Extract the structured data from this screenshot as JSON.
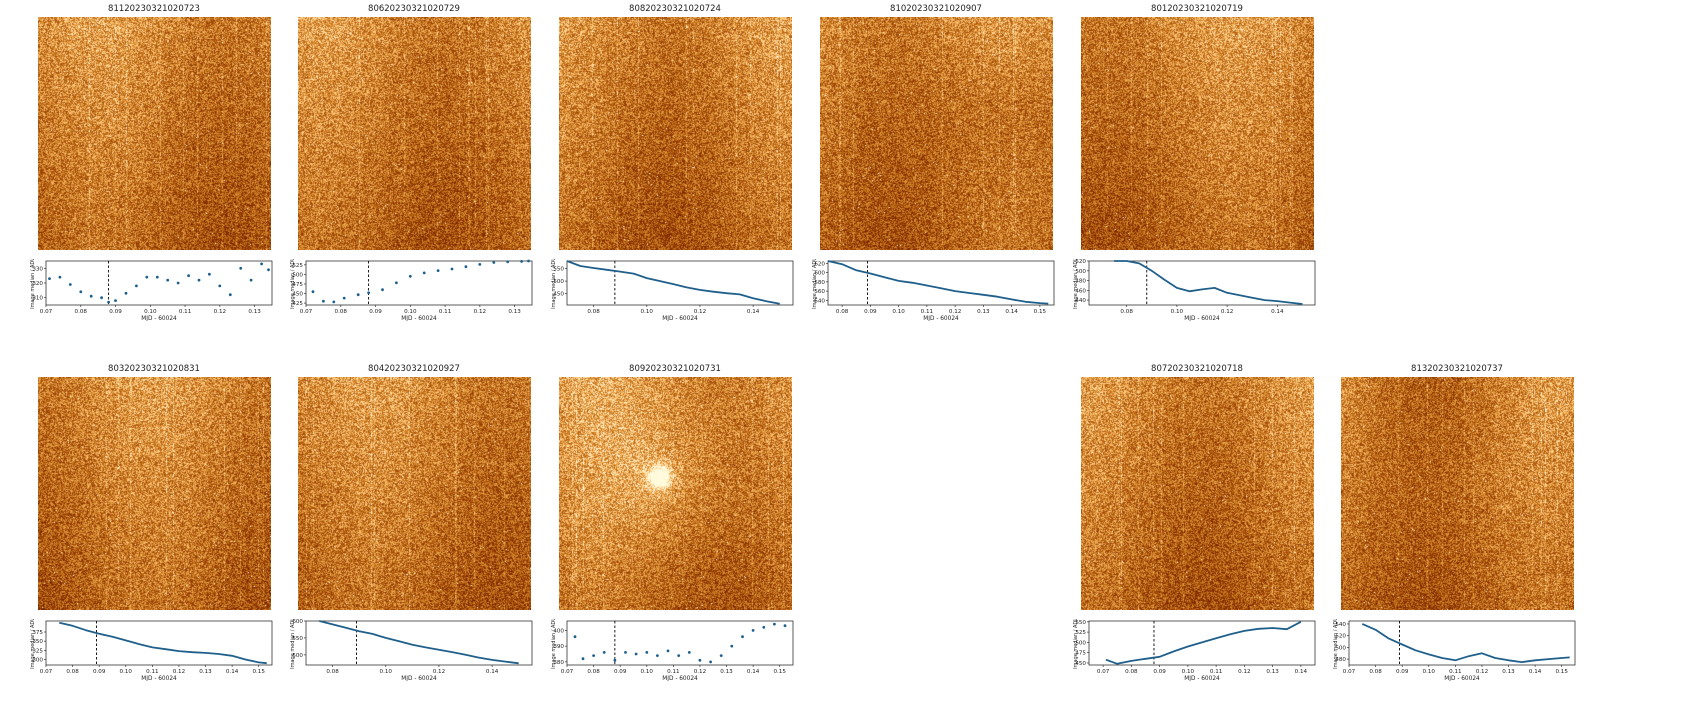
{
  "panels": [
    {
      "title": "81120230321020723"
    },
    {
      "title": "80620230321020729"
    },
    {
      "title": "80820230321020724"
    },
    {
      "title": "81020230321020907"
    },
    {
      "title": "80120230321020719"
    },
    {
      "title": "80320230321020831"
    },
    {
      "title": "80420230321020927"
    },
    {
      "title": "80920230321020731"
    },
    {
      "title": "80720230321020718"
    },
    {
      "title": "81320230321020737"
    }
  ],
  "colors": {
    "series": "#1f5f8b",
    "marker": "#000000",
    "image_bright": "#fff2b8",
    "image_mid": "#e39a3a",
    "image_dark": "#5a1800"
  },
  "chart_data": [
    {
      "type": "scatter",
      "title": "81120230321020723",
      "xlabel": "MJD - 60024",
      "ylabel": "Image median / ADU",
      "xlim": [
        0.07,
        0.135
      ],
      "ylim": [
        305,
        335
      ],
      "xticks": [
        0.07,
        0.08,
        0.09,
        0.1,
        0.11,
        0.12,
        0.13
      ],
      "xtick_labels": [
        "0.07",
        "0.08",
        "0.09",
        "0.10",
        "0.11",
        "0.12",
        "0.13"
      ],
      "yticks": [
        310,
        320,
        330
      ],
      "ytick_labels": [
        "310",
        "320",
        "330"
      ],
      "vline": 0.088,
      "x": [
        0.071,
        0.074,
        0.077,
        0.08,
        0.083,
        0.086,
        0.088,
        0.09,
        0.093,
        0.096,
        0.099,
        0.102,
        0.105,
        0.108,
        0.111,
        0.114,
        0.117,
        0.12,
        0.123,
        0.126,
        0.129,
        0.132,
        0.134
      ],
      "y": [
        323,
        324,
        319,
        314,
        311,
        310,
        307,
        308,
        313,
        318,
        324,
        324,
        322,
        320,
        325,
        322,
        326,
        318,
        312,
        330,
        322,
        333,
        329
      ]
    },
    {
      "type": "scatter",
      "title": "80620230321020729",
      "xlabel": "MJD - 60024",
      "ylabel": "Image median / ADU",
      "xlim": [
        0.07,
        0.135
      ],
      "ylim": [
        420,
        535
      ],
      "xticks": [
        0.07,
        0.08,
        0.09,
        0.1,
        0.11,
        0.12,
        0.13
      ],
      "xtick_labels": [
        "0.07",
        "0.08",
        "0.09",
        "0.10",
        "0.11",
        "0.12",
        "0.13"
      ],
      "yticks": [
        425,
        450,
        475,
        500,
        525
      ],
      "ytick_labels": [
        "425",
        "450",
        "475",
        "500",
        "525"
      ],
      "vline": 0.088,
      "x": [
        0.072,
        0.075,
        0.078,
        0.081,
        0.085,
        0.088,
        0.092,
        0.096,
        0.1,
        0.104,
        0.108,
        0.112,
        0.116,
        0.12,
        0.124,
        0.128,
        0.132,
        0.134
      ],
      "y": [
        455,
        430,
        428,
        438,
        447,
        452,
        460,
        478,
        495,
        504,
        510,
        514,
        520,
        526,
        531,
        533,
        534,
        535
      ]
    },
    {
      "type": "line",
      "title": "80820230321020724",
      "xlabel": "MJD - 60024",
      "ylabel": "Image median / ADU",
      "xlim": [
        0.07,
        0.155
      ],
      "ylim": [
        405,
        580
      ],
      "xticks": [
        0.08,
        0.1,
        0.12,
        0.14
      ],
      "xtick_labels": [
        "0.08",
        "0.10",
        "0.12",
        "0.14"
      ],
      "yticks": [
        450,
        500,
        550
      ],
      "ytick_labels": [
        "450",
        "500",
        "550"
      ],
      "vline": 0.088,
      "x": [
        0.07,
        0.075,
        0.08,
        0.085,
        0.09,
        0.095,
        0.1,
        0.105,
        0.11,
        0.115,
        0.12,
        0.125,
        0.13,
        0.135,
        0.14,
        0.145,
        0.15
      ],
      "y": [
        580,
        560,
        552,
        545,
        538,
        530,
        512,
        500,
        488,
        475,
        465,
        458,
        452,
        447,
        432,
        420,
        410
      ]
    },
    {
      "type": "line",
      "title": "81020230321020907",
      "xlabel": "MJD - 60024",
      "ylabel": "Image median / ADU",
      "xlim": [
        0.075,
        0.155
      ],
      "ylim": [
        530,
        625
      ],
      "xticks": [
        0.08,
        0.09,
        0.1,
        0.11,
        0.12,
        0.13,
        0.14,
        0.15
      ],
      "xtick_labels": [
        "0.08",
        "0.09",
        "0.10",
        "0.11",
        "0.12",
        "0.13",
        "0.14",
        "0.15"
      ],
      "yticks": [
        540,
        560,
        580,
        600,
        620
      ],
      "ytick_labels": [
        "540",
        "560",
        "580",
        "600",
        "620"
      ],
      "vline": 0.089,
      "x": [
        0.075,
        0.08,
        0.085,
        0.09,
        0.095,
        0.1,
        0.105,
        0.11,
        0.115,
        0.12,
        0.125,
        0.13,
        0.135,
        0.14,
        0.145,
        0.15,
        0.153
      ],
      "y": [
        625,
        618,
        605,
        598,
        590,
        582,
        578,
        572,
        566,
        560,
        556,
        552,
        548,
        542,
        537,
        534,
        533
      ]
    },
    {
      "type": "line",
      "title": "80120230321020719",
      "xlabel": "MJD - 60024",
      "ylabel": "Image median / ADU",
      "xlim": [
        0.065,
        0.155
      ],
      "ylim": [
        430,
        520
      ],
      "xticks": [
        0.08,
        0.1,
        0.12,
        0.14
      ],
      "xtick_labels": [
        "0.08",
        "0.10",
        "0.12",
        "0.14"
      ],
      "yticks": [
        440,
        460,
        480,
        500,
        520
      ],
      "ytick_labels": [
        "440",
        "460",
        "480",
        "500",
        "520"
      ],
      "vline": 0.088,
      "x": [
        0.075,
        0.08,
        0.085,
        0.09,
        0.095,
        0.1,
        0.105,
        0.11,
        0.115,
        0.12,
        0.125,
        0.13,
        0.135,
        0.14,
        0.145,
        0.15
      ],
      "y": [
        520,
        520,
        515,
        500,
        482,
        465,
        458,
        462,
        465,
        455,
        450,
        445,
        440,
        438,
        435,
        432
      ]
    },
    {
      "type": "line",
      "title": "80320230321020831",
      "xlabel": "MJD - 60024",
      "ylabel": "Image median / ADU",
      "xlim": [
        0.07,
        0.155
      ],
      "ylim": [
        285,
        405
      ],
      "xticks": [
        0.07,
        0.08,
        0.09,
        0.1,
        0.11,
        0.12,
        0.13,
        0.14,
        0.15
      ],
      "xtick_labels": [
        "0.07",
        "0.08",
        "0.09",
        "0.10",
        "0.11",
        "0.12",
        "0.13",
        "0.14",
        "0.15"
      ],
      "yticks": [
        300,
        325,
        350,
        375
      ],
      "ytick_labels": [
        "300",
        "325",
        "350",
        "375"
      ],
      "vline": 0.089,
      "x": [
        0.075,
        0.08,
        0.085,
        0.09,
        0.095,
        0.1,
        0.105,
        0.11,
        0.115,
        0.12,
        0.125,
        0.13,
        0.135,
        0.14,
        0.145,
        0.15,
        0.153
      ],
      "y": [
        400,
        392,
        380,
        370,
        362,
        352,
        342,
        333,
        328,
        323,
        320,
        318,
        315,
        310,
        300,
        292,
        290
      ]
    },
    {
      "type": "line",
      "title": "80420230321020927",
      "xlabel": "MJD - 60024",
      "ylabel": "Image median / ADU",
      "xlim": [
        0.07,
        0.155
      ],
      "ylim": [
        470,
        600
      ],
      "xticks": [
        0.08,
        0.1,
        0.12,
        0.14
      ],
      "xtick_labels": [
        "0.08",
        "0.10",
        "0.12",
        "0.14"
      ],
      "yticks": [
        500,
        550,
        600
      ],
      "ytick_labels": [
        "500",
        "550",
        "600"
      ],
      "vline": 0.089,
      "x": [
        0.075,
        0.08,
        0.085,
        0.09,
        0.095,
        0.1,
        0.105,
        0.11,
        0.115,
        0.12,
        0.125,
        0.13,
        0.135,
        0.14,
        0.145,
        0.15
      ],
      "y": [
        600,
        590,
        580,
        570,
        562,
        550,
        540,
        530,
        522,
        515,
        508,
        500,
        492,
        485,
        480,
        475
      ]
    },
    {
      "type": "scatter",
      "title": "80920230321020731",
      "xlabel": "MJD - 60024",
      "ylabel": "Image median / ADU",
      "xlim": [
        0.07,
        0.155
      ],
      "ylim": [
        378,
        406
      ],
      "xticks": [
        0.07,
        0.08,
        0.09,
        0.1,
        0.11,
        0.12,
        0.13,
        0.14,
        0.15
      ],
      "xtick_labels": [
        "0.07",
        "0.08",
        "0.09",
        "0.10",
        "0.11",
        "0.12",
        "0.13",
        "0.14",
        "0.15"
      ],
      "yticks": [
        380,
        390,
        400
      ],
      "ytick_labels": [
        "380",
        "390",
        "400"
      ],
      "vline": 0.088,
      "x": [
        0.073,
        0.076,
        0.08,
        0.084,
        0.088,
        0.092,
        0.096,
        0.1,
        0.104,
        0.108,
        0.112,
        0.116,
        0.12,
        0.124,
        0.128,
        0.132,
        0.136,
        0.14,
        0.144,
        0.148,
        0.152
      ],
      "y": [
        396,
        382,
        384,
        386,
        381,
        386,
        385,
        386,
        384,
        387,
        384,
        386,
        381,
        380,
        384,
        390,
        396,
        400,
        402,
        404,
        403
      ]
    },
    {
      "type": "line",
      "title": "80720230321020718",
      "xlabel": "MJD - 60024",
      "ylabel": "Image median / ADU",
      "xlim": [
        0.065,
        0.145
      ],
      "ylim": [
        445,
        552
      ],
      "xticks": [
        0.07,
        0.08,
        0.09,
        0.1,
        0.11,
        0.12,
        0.13,
        0.14
      ],
      "xtick_labels": [
        "0.07",
        "0.08",
        "0.09",
        "0.10",
        "0.11",
        "0.12",
        "0.13",
        "0.14"
      ],
      "yticks": [
        450,
        475,
        500,
        525,
        550
      ],
      "ytick_labels": [
        "450",
        "475",
        "500",
        "525",
        "550"
      ],
      "vline": 0.088,
      "x": [
        0.071,
        0.075,
        0.08,
        0.085,
        0.09,
        0.095,
        0.1,
        0.105,
        0.11,
        0.115,
        0.12,
        0.125,
        0.13,
        0.135,
        0.14
      ],
      "y": [
        458,
        448,
        455,
        460,
        465,
        478,
        490,
        500,
        510,
        520,
        528,
        533,
        535,
        532,
        550
      ]
    },
    {
      "type": "line",
      "title": "81320230321020737",
      "xlabel": "MJD - 60024",
      "ylabel": "Image median / ADU",
      "xlim": [
        0.07,
        0.155
      ],
      "ylim": [
        470,
        545
      ],
      "xticks": [
        0.07,
        0.08,
        0.09,
        0.1,
        0.11,
        0.12,
        0.13,
        0.14,
        0.15
      ],
      "xtick_labels": [
        "0.07",
        "0.08",
        "0.09",
        "0.10",
        "0.11",
        "0.12",
        "0.13",
        "0.14",
        "0.15"
      ],
      "yticks": [
        480,
        500,
        520,
        540
      ],
      "ytick_labels": [
        "480",
        "500",
        "520",
        "540"
      ],
      "vline": 0.089,
      "x": [
        0.075,
        0.08,
        0.085,
        0.09,
        0.095,
        0.1,
        0.105,
        0.11,
        0.115,
        0.12,
        0.125,
        0.13,
        0.135,
        0.14,
        0.145,
        0.15,
        0.153
      ],
      "y": [
        540,
        530,
        515,
        505,
        495,
        488,
        482,
        478,
        485,
        490,
        482,
        478,
        475,
        478,
        480,
        482,
        483
      ]
    }
  ]
}
